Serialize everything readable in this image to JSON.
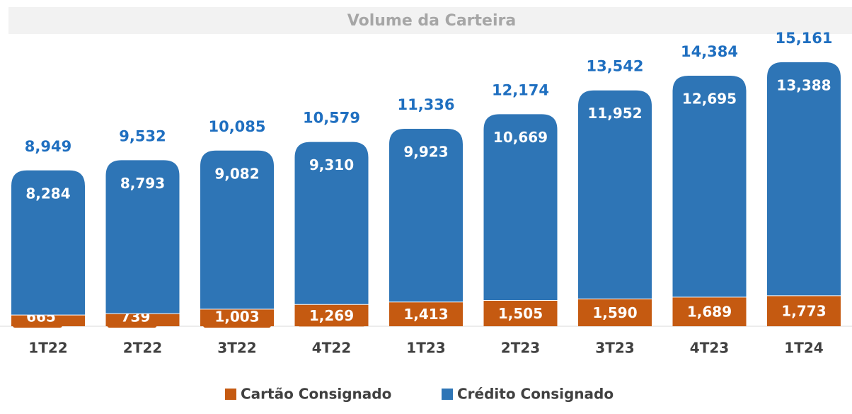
{
  "chart_data": {
    "type": "stacked_bar",
    "title": "Volume da Carteira",
    "categories": [
      "1T22",
      "2T22",
      "3T22",
      "4T22",
      "1T23",
      "2T23",
      "3T23",
      "4T23",
      "1T24"
    ],
    "series": [
      {
        "name": "Cartão Consignado",
        "color": "#c55a11",
        "values": [
          665,
          739,
          1003,
          1269,
          1413,
          1505,
          1590,
          1689,
          1773
        ],
        "value_labels": [
          "665",
          "739",
          "1,003",
          "1,269",
          "1,413",
          "1,505",
          "1,590",
          "1,689",
          "1,773"
        ]
      },
      {
        "name": "Crédito Consignado",
        "color": "#2e75b6",
        "values": [
          8284,
          8793,
          9082,
          9310,
          9923,
          10669,
          11952,
          12695,
          13388
        ],
        "value_labels": [
          "8,284",
          "8,793",
          "9,082",
          "9,310",
          "9,923",
          "10,669",
          "11,952",
          "12,695",
          "13,388"
        ]
      }
    ],
    "totals": [
      8949,
      9532,
      10085,
      10579,
      11336,
      12174,
      13542,
      14384,
      15161
    ],
    "total_labels": [
      "8,949",
      "9,532",
      "10,085",
      "10,579",
      "11,336",
      "12,174",
      "13,542",
      "14,384",
      "15,161"
    ],
    "total_color": "#1f6fc0",
    "ylim": [
      0,
      18000
    ],
    "legend": "bottom"
  }
}
